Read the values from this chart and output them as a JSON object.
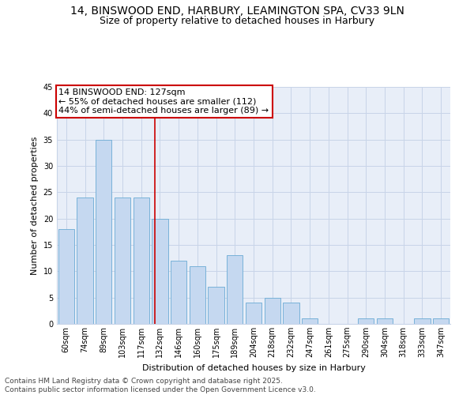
{
  "title_line1": "14, BINSWOOD END, HARBURY, LEAMINGTON SPA, CV33 9LN",
  "title_line2": "Size of property relative to detached houses in Harbury",
  "xlabel": "Distribution of detached houses by size in Harbury",
  "ylabel": "Number of detached properties",
  "categories": [
    "60sqm",
    "74sqm",
    "89sqm",
    "103sqm",
    "117sqm",
    "132sqm",
    "146sqm",
    "160sqm",
    "175sqm",
    "189sqm",
    "204sqm",
    "218sqm",
    "232sqm",
    "247sqm",
    "261sqm",
    "275sqm",
    "290sqm",
    "304sqm",
    "318sqm",
    "333sqm",
    "347sqm"
  ],
  "values": [
    18,
    24,
    35,
    24,
    24,
    20,
    12,
    11,
    7,
    13,
    4,
    5,
    4,
    1,
    0,
    0,
    1,
    1,
    0,
    1,
    1
  ],
  "bar_color": "#c5d8f0",
  "bar_edge_color": "#6aaad4",
  "red_line_color": "#cc0000",
  "red_line_x": 4.72,
  "annotation_text_line1": "14 BINSWOOD END: 127sqm",
  "annotation_text_line2": "← 55% of detached houses are smaller (112)",
  "annotation_text_line3": "44% of semi-detached houses are larger (89) →",
  "annotation_box_facecolor": "#ffffff",
  "annotation_box_edgecolor": "#cc0000",
  "ylim": [
    0,
    45
  ],
  "yticks": [
    0,
    5,
    10,
    15,
    20,
    25,
    30,
    35,
    40,
    45
  ],
  "grid_color": "#c8d4e8",
  "background_color": "#e8eef8",
  "footer_line1": "Contains HM Land Registry data © Crown copyright and database right 2025.",
  "footer_line2": "Contains public sector information licensed under the Open Government Licence v3.0.",
  "title_fontsize": 10,
  "subtitle_fontsize": 9,
  "annotation_fontsize": 8,
  "tick_fontsize": 7,
  "ylabel_fontsize": 8,
  "xlabel_fontsize": 8,
  "footer_fontsize": 6.5
}
